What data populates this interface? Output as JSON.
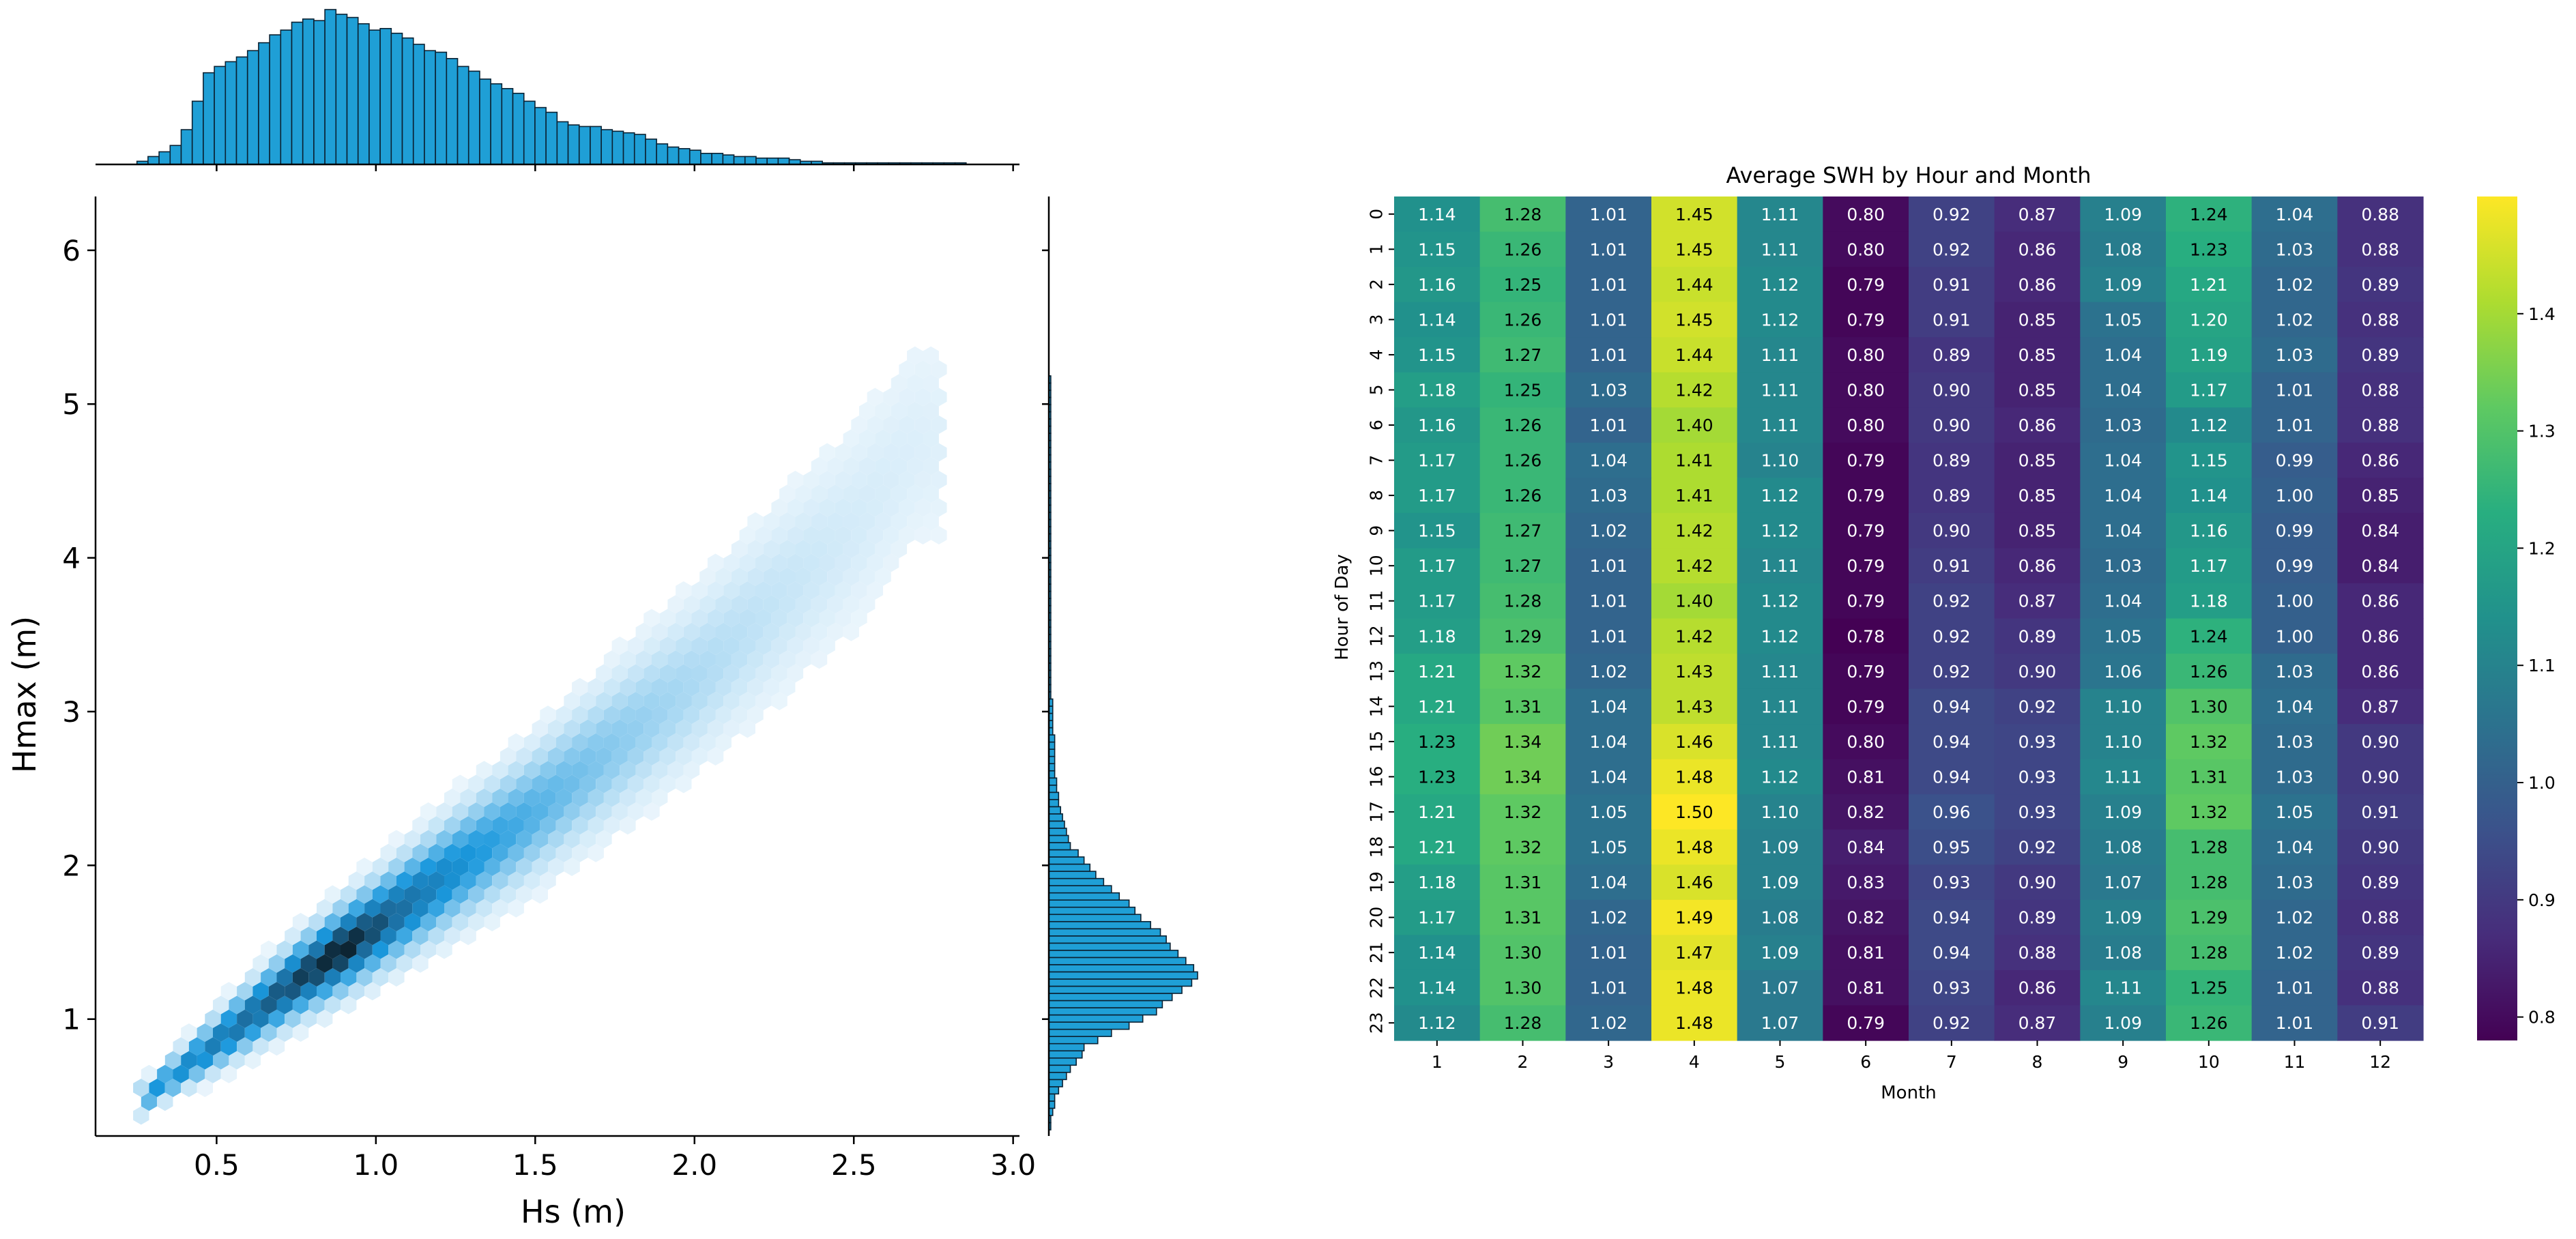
{
  "colors": {
    "hist_fill": "#1f9fd6",
    "hist_edge": "#0b2233",
    "hex_light": "#eaf5fc",
    "hex_mid": "#1a98dd",
    "hex_dark": "#0a1820",
    "axis": "#000000"
  },
  "chart_data": [
    {
      "type": "scatter",
      "subtype": "hexbin-jointplot",
      "title": "",
      "xlabel": "Hs (m)",
      "ylabel": "Hmax (m)",
      "xlim": [
        0.12,
        3.02
      ],
      "ylim": [
        0.24,
        6.35
      ],
      "xticks": [
        0.5,
        1.0,
        1.5,
        2.0,
        2.5,
        3.0
      ],
      "xtick_labels": [
        "0.5",
        "1.0",
        "1.5",
        "2.0",
        "2.5",
        "3.0"
      ],
      "yticks": [
        1,
        2,
        3,
        4,
        5,
        6
      ],
      "ytick_labels": [
        "1",
        "2",
        "3",
        "4",
        "5",
        "6"
      ],
      "grid": false,
      "density_ridge": {
        "x": [
          0.25,
          0.5,
          0.75,
          1.0,
          1.5,
          2.0,
          2.5,
          2.7
        ],
        "y_center": [
          0.45,
          0.85,
          1.25,
          1.6,
          2.35,
          3.2,
          4.2,
          4.75
        ],
        "y_spread": [
          0.05,
          0.1,
          0.14,
          0.17,
          0.24,
          0.32,
          0.42,
          0.48
        ]
      },
      "marginal_x": {
        "bin_start": 0.25,
        "bin_width": 0.0347,
        "counts": [
          2,
          5,
          8,
          12,
          22,
          40,
          58,
          62,
          65,
          68,
          72,
          77,
          82,
          85,
          90,
          92,
          91,
          98,
          95,
          93,
          89,
          85,
          86,
          83,
          80,
          76,
          72,
          71,
          67,
          62,
          59,
          54,
          51,
          48,
          45,
          40,
          36,
          33,
          27,
          25,
          24,
          24,
          22,
          21,
          20,
          19,
          16,
          13,
          11,
          10,
          9,
          7,
          7,
          6,
          5,
          5,
          4,
          4,
          4,
          3,
          2,
          2,
          1,
          1,
          1,
          1,
          1,
          1,
          1,
          1,
          1,
          1,
          1,
          1,
          1
        ]
      },
      "marginal_y": {
        "bin_start": 0.28,
        "bin_width": 0.0467,
        "counts": [
          1,
          1,
          2,
          3,
          3,
          5,
          7,
          9,
          11,
          14,
          17,
          18,
          25,
          32,
          41,
          48,
          55,
          58,
          63,
          68,
          73,
          76,
          74,
          70,
          66,
          62,
          60,
          57,
          52,
          47,
          44,
          41,
          36,
          32,
          28,
          24,
          21,
          18,
          15,
          11,
          10,
          9,
          8,
          7,
          6,
          5,
          5,
          4,
          4,
          3,
          3,
          3,
          3,
          3,
          3,
          2,
          2,
          2,
          2,
          2,
          1,
          1,
          1,
          1,
          1,
          1,
          1,
          1,
          1,
          1,
          1,
          1,
          1,
          1,
          1,
          1,
          1,
          1,
          1,
          1,
          1,
          1,
          1,
          1,
          1,
          1,
          1,
          1,
          1,
          1,
          1,
          1,
          1,
          1,
          1,
          1,
          1,
          1,
          1,
          1,
          1,
          1,
          1,
          1,
          1
        ]
      }
    },
    {
      "type": "heatmap",
      "title": "Average SWH by Hour and Month",
      "xlabel": "Month",
      "ylabel": "Hour of Day",
      "x": [
        "1",
        "2",
        "3",
        "4",
        "5",
        "6",
        "7",
        "8",
        "9",
        "10",
        "11",
        "12"
      ],
      "y": [
        "0",
        "1",
        "2",
        "3",
        "4",
        "5",
        "6",
        "7",
        "8",
        "9",
        "10",
        "11",
        "12",
        "13",
        "14",
        "15",
        "16",
        "17",
        "18",
        "19",
        "20",
        "21",
        "22",
        "23"
      ],
      "colormap": "viridis",
      "vmin": 0.78,
      "vmax": 1.5,
      "colorbar_ticks": [
        "0.8",
        "0.9",
        "1.0",
        "1.1",
        "1.2",
        "1.3",
        "1.4"
      ],
      "colorbar_tick_values": [
        0.8,
        0.9,
        1.0,
        1.1,
        1.2,
        1.3,
        1.4
      ],
      "values": [
        [
          "1.14",
          "1.28",
          "1.01",
          "1.45",
          "1.11",
          "0.80",
          "0.92",
          "0.87",
          "1.09",
          "1.24",
          "1.04",
          "0.88"
        ],
        [
          "1.15",
          "1.26",
          "1.01",
          "1.45",
          "1.11",
          "0.80",
          "0.92",
          "0.86",
          "1.08",
          "1.23",
          "1.03",
          "0.88"
        ],
        [
          "1.16",
          "1.25",
          "1.01",
          "1.44",
          "1.12",
          "0.79",
          "0.91",
          "0.86",
          "1.09",
          "1.21",
          "1.02",
          "0.89"
        ],
        [
          "1.14",
          "1.26",
          "1.01",
          "1.45",
          "1.12",
          "0.79",
          "0.91",
          "0.85",
          "1.05",
          "1.20",
          "1.02",
          "0.88"
        ],
        [
          "1.15",
          "1.27",
          "1.01",
          "1.44",
          "1.11",
          "0.80",
          "0.89",
          "0.85",
          "1.04",
          "1.19",
          "1.03",
          "0.89"
        ],
        [
          "1.18",
          "1.25",
          "1.03",
          "1.42",
          "1.11",
          "0.80",
          "0.90",
          "0.85",
          "1.04",
          "1.17",
          "1.01",
          "0.88"
        ],
        [
          "1.16",
          "1.26",
          "1.01",
          "1.40",
          "1.11",
          "0.80",
          "0.90",
          "0.86",
          "1.03",
          "1.12",
          "1.01",
          "0.88"
        ],
        [
          "1.17",
          "1.26",
          "1.04",
          "1.41",
          "1.10",
          "0.79",
          "0.89",
          "0.85",
          "1.04",
          "1.15",
          "0.99",
          "0.86"
        ],
        [
          "1.17",
          "1.26",
          "1.03",
          "1.41",
          "1.12",
          "0.79",
          "0.89",
          "0.85",
          "1.04",
          "1.14",
          "1.00",
          "0.85"
        ],
        [
          "1.15",
          "1.27",
          "1.02",
          "1.42",
          "1.12",
          "0.79",
          "0.90",
          "0.85",
          "1.04",
          "1.16",
          "0.99",
          "0.84"
        ],
        [
          "1.17",
          "1.27",
          "1.01",
          "1.42",
          "1.11",
          "0.79",
          "0.91",
          "0.86",
          "1.03",
          "1.17",
          "0.99",
          "0.84"
        ],
        [
          "1.17",
          "1.28",
          "1.01",
          "1.40",
          "1.12",
          "0.79",
          "0.92",
          "0.87",
          "1.04",
          "1.18",
          "1.00",
          "0.86"
        ],
        [
          "1.18",
          "1.29",
          "1.01",
          "1.42",
          "1.12",
          "0.78",
          "0.92",
          "0.89",
          "1.05",
          "1.24",
          "1.00",
          "0.86"
        ],
        [
          "1.21",
          "1.32",
          "1.02",
          "1.43",
          "1.11",
          "0.79",
          "0.92",
          "0.90",
          "1.06",
          "1.26",
          "1.03",
          "0.86"
        ],
        [
          "1.21",
          "1.31",
          "1.04",
          "1.43",
          "1.11",
          "0.79",
          "0.94",
          "0.92",
          "1.10",
          "1.30",
          "1.04",
          "0.87"
        ],
        [
          "1.23",
          "1.34",
          "1.04",
          "1.46",
          "1.11",
          "0.80",
          "0.94",
          "0.93",
          "1.10",
          "1.32",
          "1.03",
          "0.90"
        ],
        [
          "1.23",
          "1.34",
          "1.04",
          "1.48",
          "1.12",
          "0.81",
          "0.94",
          "0.93",
          "1.11",
          "1.31",
          "1.03",
          "0.90"
        ],
        [
          "1.21",
          "1.32",
          "1.05",
          "1.50",
          "1.10",
          "0.82",
          "0.96",
          "0.93",
          "1.09",
          "1.32",
          "1.05",
          "0.91"
        ],
        [
          "1.21",
          "1.32",
          "1.05",
          "1.48",
          "1.09",
          "0.84",
          "0.95",
          "0.92",
          "1.08",
          "1.28",
          "1.04",
          "0.90"
        ],
        [
          "1.18",
          "1.31",
          "1.04",
          "1.46",
          "1.09",
          "0.83",
          "0.93",
          "0.90",
          "1.07",
          "1.28",
          "1.03",
          "0.89"
        ],
        [
          "1.17",
          "1.31",
          "1.02",
          "1.49",
          "1.08",
          "0.82",
          "0.94",
          "0.89",
          "1.09",
          "1.29",
          "1.02",
          "0.88"
        ],
        [
          "1.14",
          "1.30",
          "1.01",
          "1.47",
          "1.09",
          "0.81",
          "0.94",
          "0.88",
          "1.08",
          "1.28",
          "1.02",
          "0.89"
        ],
        [
          "1.14",
          "1.30",
          "1.01",
          "1.48",
          "1.07",
          "0.81",
          "0.93",
          "0.86",
          "1.11",
          "1.25",
          "1.01",
          "0.88"
        ],
        [
          "1.12",
          "1.28",
          "1.02",
          "1.48",
          "1.07",
          "0.79",
          "0.92",
          "0.87",
          "1.09",
          "1.26",
          "1.01",
          "0.91"
        ]
      ]
    }
  ]
}
